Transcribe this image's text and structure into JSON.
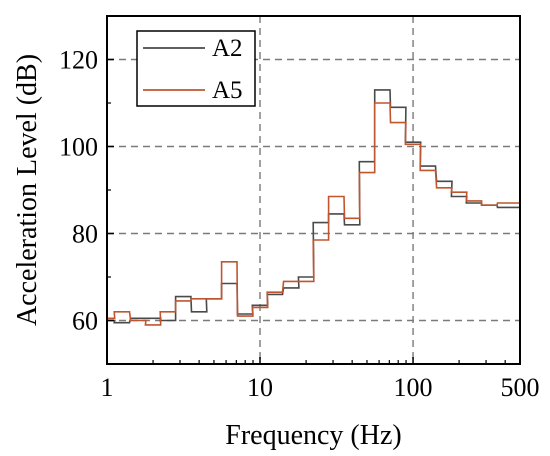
{
  "chart_data": {
    "type": "line",
    "step": true,
    "xlabel": "Frequency (Hz)",
    "ylabel": "Acceleration Level (dB)",
    "xscale": "log",
    "xlim": [
      1,
      500
    ],
    "ylim": [
      50,
      130
    ],
    "x_ticks": [
      {
        "value": 1,
        "label": "1"
      },
      {
        "value": 10,
        "label": "10"
      },
      {
        "value": 100,
        "label": "100"
      },
      {
        "value": 500,
        "label": "500"
      }
    ],
    "y_ticks": [
      {
        "value": 60,
        "label": "60"
      },
      {
        "value": 80,
        "label": "80"
      },
      {
        "value": 100,
        "label": "100"
      },
      {
        "value": 120,
        "label": "120"
      }
    ],
    "grid": true,
    "legend_position": "top-left",
    "band_centers_hz": [
      1,
      1.25,
      1.6,
      2,
      2.5,
      3.15,
      4,
      5,
      6.3,
      8,
      10,
      12.5,
      16,
      20,
      25,
      31.5,
      40,
      50,
      63,
      80,
      100,
      125,
      160,
      200,
      250,
      315,
      400,
      500
    ],
    "series": [
      {
        "name": "A2",
        "color": "#4a4a4a",
        "values": [
          60,
          59.5,
          60.5,
          60.5,
          60,
          65.5,
          62,
          65,
          68.5,
          61.5,
          63.5,
          66,
          67.5,
          70,
          82.5,
          84.5,
          82,
          96.5,
          113,
          109,
          101,
          95.5,
          92,
          88.5,
          87,
          86.5,
          86,
          86
        ]
      },
      {
        "name": "A5",
        "color": "#c0562f",
        "values": [
          60.5,
          62,
          60,
          59,
          62,
          64.5,
          65,
          65,
          73.5,
          61,
          63,
          66.5,
          69,
          69,
          78.5,
          88.5,
          83.5,
          94,
          110,
          105.5,
          100.5,
          94.5,
          90.5,
          89.5,
          87.5,
          86.5,
          87,
          87
        ]
      }
    ]
  }
}
